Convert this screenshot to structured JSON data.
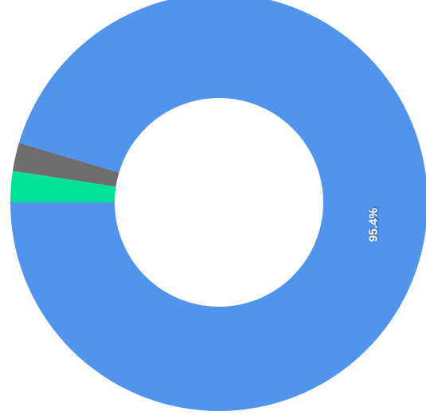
{
  "chart_data": {
    "type": "donut",
    "values": [
      95.4,
      2.2,
      2.4
    ],
    "value_labels": [
      "95.4%",
      null,
      null
    ],
    "colors": [
      "#5094ee",
      "#6e6e6e",
      "#00e396"
    ]
  }
}
